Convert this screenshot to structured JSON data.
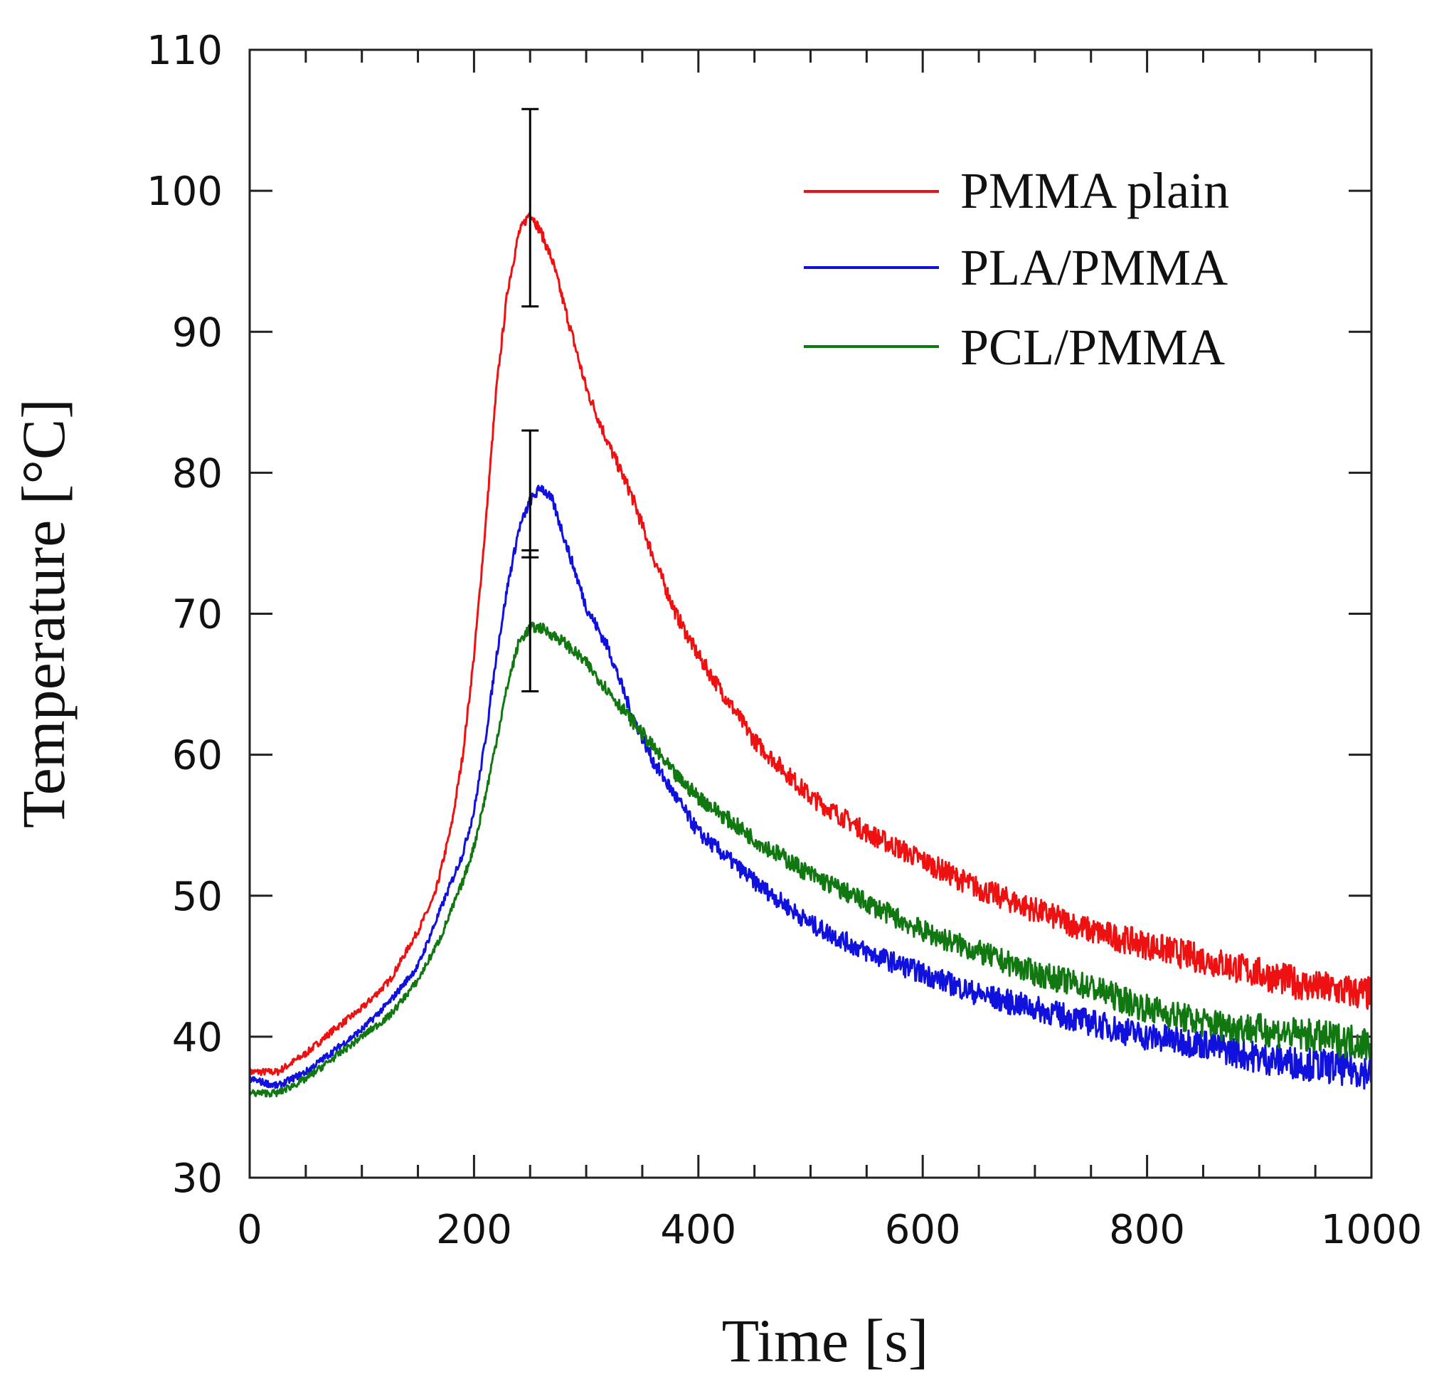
{
  "chart_data": {
    "type": "line",
    "title": "",
    "xlabel": "Time [s]",
    "ylabel": "Temperature [°C]",
    "xlim": [
      0,
      1000
    ],
    "ylim": [
      30,
      110
    ],
    "x_ticks": [
      "0",
      "200",
      "400",
      "600",
      "800",
      "1000"
    ],
    "y_ticks": [
      "30",
      "40",
      "50",
      "60",
      "70",
      "80",
      "90",
      "100",
      "110"
    ],
    "grid": false,
    "legend_position": "top-right",
    "series": [
      {
        "name": "PMMA plain",
        "color": "#ee1111",
        "x": [
          0,
          25,
          50,
          75,
          100,
          125,
          150,
          165,
          180,
          190,
          200,
          210,
          220,
          230,
          240,
          250,
          260,
          270,
          280,
          290,
          300,
          320,
          340,
          360,
          380,
          400,
          425,
          450,
          500,
          550,
          600,
          650,
          700,
          750,
          800,
          850,
          900,
          950,
          1000
        ],
        "values": [
          37.5,
          37.5,
          38.8,
          40.5,
          42.0,
          44.0,
          47.5,
          50.0,
          55.0,
          60.0,
          67.0,
          76.0,
          86.0,
          93.0,
          97.0,
          98.5,
          97.0,
          95.0,
          92.0,
          89.0,
          86.0,
          82.0,
          78.5,
          74.0,
          70.0,
          67.0,
          64.0,
          61.0,
          57.0,
          54.5,
          52.5,
          50.5,
          49.0,
          47.5,
          46.5,
          45.5,
          44.5,
          43.5,
          43.0
        ]
      },
      {
        "name": "PLA/PMMA",
        "color": "#1111dd",
        "x": [
          0,
          25,
          50,
          75,
          100,
          125,
          150,
          170,
          190,
          200,
          210,
          220,
          230,
          240,
          250,
          260,
          270,
          280,
          290,
          300,
          320,
          340,
          360,
          380,
          400,
          450,
          500,
          550,
          600,
          650,
          700,
          750,
          800,
          850,
          900,
          950,
          1000
        ],
        "values": [
          37.0,
          36.5,
          37.5,
          39.0,
          40.5,
          42.5,
          45.0,
          49.0,
          53.0,
          56.0,
          61.0,
          67.0,
          72.0,
          76.0,
          78.0,
          79.0,
          78.0,
          75.5,
          73.0,
          70.5,
          67.5,
          63.0,
          59.5,
          57.0,
          54.5,
          51.0,
          48.0,
          46.0,
          44.5,
          43.0,
          42.0,
          41.0,
          40.0,
          39.5,
          38.5,
          38.0,
          37.5
        ]
      },
      {
        "name": "PCL/PMMA",
        "color": "#117711",
        "x": [
          0,
          25,
          50,
          75,
          100,
          125,
          150,
          170,
          190,
          200,
          210,
          220,
          230,
          240,
          250,
          260,
          280,
          300,
          320,
          340,
          360,
          380,
          400,
          450,
          500,
          550,
          600,
          650,
          700,
          750,
          800,
          850,
          900,
          950,
          1000
        ],
        "values": [
          36.0,
          36.0,
          37.0,
          38.5,
          40.0,
          41.5,
          44.0,
          47.0,
          51.0,
          53.5,
          57.0,
          61.0,
          65.0,
          68.0,
          69.0,
          69.0,
          68.0,
          66.5,
          64.5,
          62.5,
          60.5,
          58.5,
          57.0,
          54.0,
          51.5,
          49.5,
          47.5,
          46.0,
          44.5,
          43.5,
          42.0,
          41.0,
          40.5,
          40.0,
          39.5
        ]
      }
    ],
    "error_bars": [
      {
        "series": "PMMA plain",
        "x": 250,
        "low": 91.8,
        "high": 105.8
      },
      {
        "series": "PLA/PMMA",
        "x": 250,
        "low": 74.0,
        "high": 83.0
      },
      {
        "series": "PCL/PMMA",
        "x": 250,
        "low": 64.5,
        "high": 74.5
      }
    ]
  }
}
